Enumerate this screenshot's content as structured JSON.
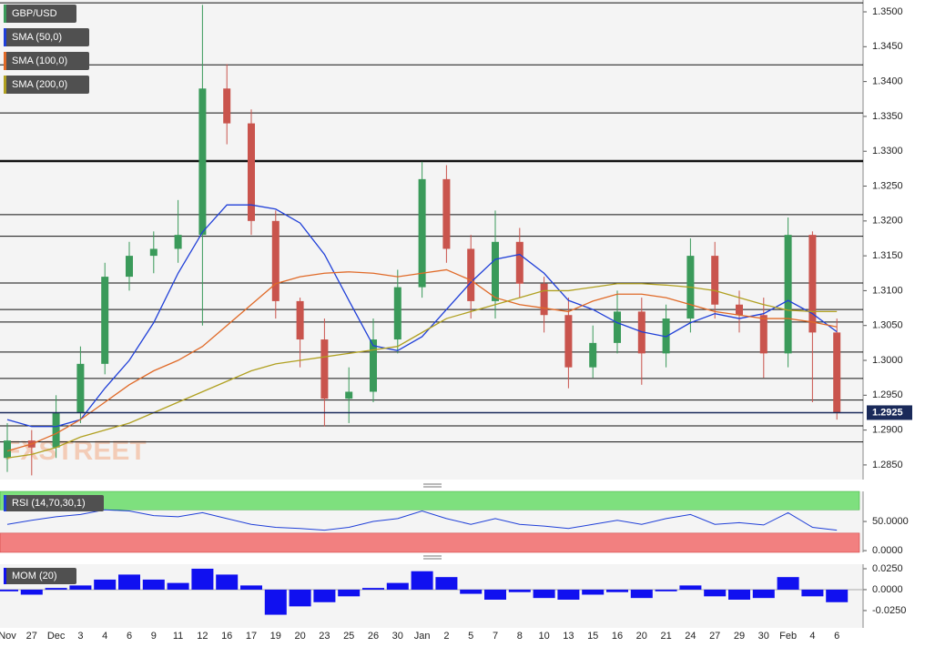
{
  "chart_data": [
    {
      "type": "candlestick",
      "symbol": "GBP/USD",
      "watermark": "FXSTREET",
      "categories": [
        "Nov",
        "27",
        "Dec",
        "3",
        "4",
        "6",
        "9",
        "11",
        "12",
        "16",
        "17",
        "19",
        "20",
        "23",
        "25",
        "26",
        "30",
        "Jan",
        "2",
        "5",
        "7",
        "8",
        "10",
        "13",
        "15",
        "16",
        "20",
        "21",
        "24",
        "27",
        "29",
        "30",
        "Feb",
        "4",
        "6"
      ],
      "open": [
        1.286,
        1.2885,
        1.2875,
        1.2925,
        1.2995,
        1.312,
        1.315,
        1.316,
        1.318,
        1.339,
        1.334,
        1.32,
        1.3085,
        1.303,
        1.2945,
        1.2955,
        1.303,
        1.3105,
        1.326,
        1.316,
        1.3085,
        1.317,
        1.311,
        1.3065,
        1.299,
        1.3025,
        1.307,
        1.301,
        1.306,
        1.315,
        1.308,
        1.3065,
        1.301,
        1.318,
        1.304
      ],
      "high": [
        1.291,
        1.29,
        1.295,
        1.302,
        1.314,
        1.317,
        1.3185,
        1.323,
        1.351,
        1.3425,
        1.336,
        1.3215,
        1.309,
        1.306,
        1.299,
        1.306,
        1.313,
        1.3285,
        1.328,
        1.318,
        1.3215,
        1.319,
        1.312,
        1.309,
        1.305,
        1.31,
        1.309,
        1.308,
        1.3175,
        1.317,
        1.31,
        1.309,
        1.3205,
        1.3185,
        1.306
      ],
      "low": [
        1.284,
        1.2835,
        1.286,
        1.291,
        1.298,
        1.31,
        1.3125,
        1.314,
        1.305,
        1.331,
        1.318,
        1.306,
        1.299,
        1.2905,
        1.291,
        1.294,
        1.301,
        1.309,
        1.314,
        1.306,
        1.306,
        1.309,
        1.304,
        1.296,
        1.2975,
        1.301,
        1.2965,
        1.299,
        1.304,
        1.306,
        1.304,
        1.2975,
        1.299,
        1.294,
        1.2915
      ],
      "close": [
        1.2885,
        1.2875,
        1.2925,
        1.2995,
        1.312,
        1.315,
        1.316,
        1.318,
        1.339,
        1.334,
        1.32,
        1.3085,
        1.303,
        1.2945,
        1.2955,
        1.303,
        1.3105,
        1.326,
        1.316,
        1.3085,
        1.317,
        1.311,
        1.3065,
        1.299,
        1.3025,
        1.307,
        1.301,
        1.306,
        1.315,
        1.308,
        1.3065,
        1.301,
        1.318,
        1.304,
        1.2925
      ],
      "up_color": "#3a9a5a",
      "down_color": "#c9544d",
      "series": [
        {
          "name": "SMA (50,0)",
          "color": "#1f3fd8",
          "values": [
            1.2915,
            1.2905,
            1.2905,
            1.2915,
            1.296,
            1.3,
            1.3054,
            1.3125,
            1.3184,
            1.3223,
            1.3223,
            1.3217,
            1.3197,
            1.3152,
            1.3086,
            1.3021,
            1.3014,
            1.3034,
            1.3073,
            1.3112,
            1.3145,
            1.3152,
            1.3125,
            1.3086,
            1.3073,
            1.3054,
            1.3041,
            1.3034,
            1.3054,
            1.3067,
            1.306,
            1.3067,
            1.3086,
            1.3067,
            1.3041
          ]
        },
        {
          "name": "SMA (100,0)",
          "color": "#e06a28",
          "values": [
            1.287,
            1.288,
            1.2895,
            1.2915,
            1.294,
            1.2965,
            1.2985,
            1.3,
            1.302,
            1.305,
            1.308,
            1.311,
            1.312,
            1.3125,
            1.3127,
            1.3125,
            1.312,
            1.3125,
            1.313,
            1.3115,
            1.309,
            1.308,
            1.3075,
            1.307,
            1.3085,
            1.3095,
            1.3095,
            1.309,
            1.308,
            1.307,
            1.3065,
            1.306,
            1.306,
            1.3055,
            1.3048
          ]
        },
        {
          "name": "SMA (200,0)",
          "color": "#b0a020",
          "values": [
            1.286,
            1.2865,
            1.2875,
            1.289,
            1.29,
            1.291,
            1.2925,
            1.294,
            1.2955,
            1.297,
            1.2985,
            1.2995,
            1.3,
            1.3005,
            1.301,
            1.3015,
            1.302,
            1.304,
            1.306,
            1.307,
            1.308,
            1.309,
            1.31,
            1.31,
            1.3105,
            1.311,
            1.311,
            1.3108,
            1.3105,
            1.31,
            1.309,
            1.308,
            1.3072,
            1.307,
            1.307
          ]
        }
      ],
      "levels": [
        1.3513,
        1.3424,
        1.3355,
        1.3286,
        1.3209,
        1.3178,
        1.3111,
        1.3073,
        1.3055,
        1.3012,
        1.2974,
        1.2943,
        1.2906,
        1.2883
      ],
      "last": 1.2925,
      "ylim": [
        1.2829,
        1.3517
      ],
      "yticks": [
        {
          "value": 1.285,
          "label": "1.2850"
        },
        {
          "value": 1.29,
          "label": "1.2900"
        },
        {
          "value": 1.295,
          "label": "1.2950"
        },
        {
          "value": 1.3,
          "label": "1.3000"
        },
        {
          "value": 1.305,
          "label": "1.3050"
        },
        {
          "value": 1.31,
          "label": "1.3100"
        },
        {
          "value": 1.315,
          "label": "1.3150"
        },
        {
          "value": 1.32,
          "label": "1.3200"
        },
        {
          "value": 1.325,
          "label": "1.3250"
        },
        {
          "value": 1.33,
          "label": "1.3300"
        },
        {
          "value": 1.335,
          "label": "1.3350"
        },
        {
          "value": 1.34,
          "label": "1.3400"
        },
        {
          "value": 1.345,
          "label": "1.3450"
        },
        {
          "value": 1.35,
          "label": "1.3500"
        }
      ]
    },
    {
      "type": "line",
      "title": "RSI (14,70,30,1)",
      "color": "#1f3fd8",
      "values": [
        45,
        52,
        58,
        62,
        70,
        68,
        60,
        58,
        65,
        55,
        45,
        40,
        38,
        35,
        40,
        50,
        55,
        68,
        55,
        45,
        55,
        45,
        42,
        38,
        45,
        52,
        45,
        55,
        62,
        45,
        48,
        44,
        65,
        40,
        35
      ],
      "upper": 70,
      "lower": 30,
      "ylim": [
        -3,
        101.6
      ],
      "yticks": [
        {
          "value": 50,
          "label": "50.0000"
        },
        {
          "value": 0,
          "label": "0.0000"
        }
      ]
    },
    {
      "type": "bar",
      "title": "MOM (20)",
      "color": "#1010f0",
      "values": [
        -0.002,
        -0.006,
        0.002,
        0.005,
        0.012,
        0.018,
        0.012,
        0.008,
        0.025,
        0.018,
        0.005,
        -0.03,
        -0.02,
        -0.015,
        -0.008,
        0.002,
        0.008,
        0.022,
        0.015,
        -0.005,
        -0.012,
        -0.003,
        -0.01,
        -0.012,
        -0.006,
        -0.003,
        -0.01,
        -0.002,
        0.005,
        -0.008,
        -0.012,
        -0.01,
        0.015,
        -0.008,
        -0.015
      ],
      "ylim": [
        -0.0457,
        0.0304
      ],
      "yticks": [
        {
          "value": 0.025,
          "label": "0.0250"
        },
        {
          "value": 0,
          "label": "0.0000"
        },
        {
          "value": -0.025,
          "label": "-0.0250"
        }
      ]
    }
  ]
}
